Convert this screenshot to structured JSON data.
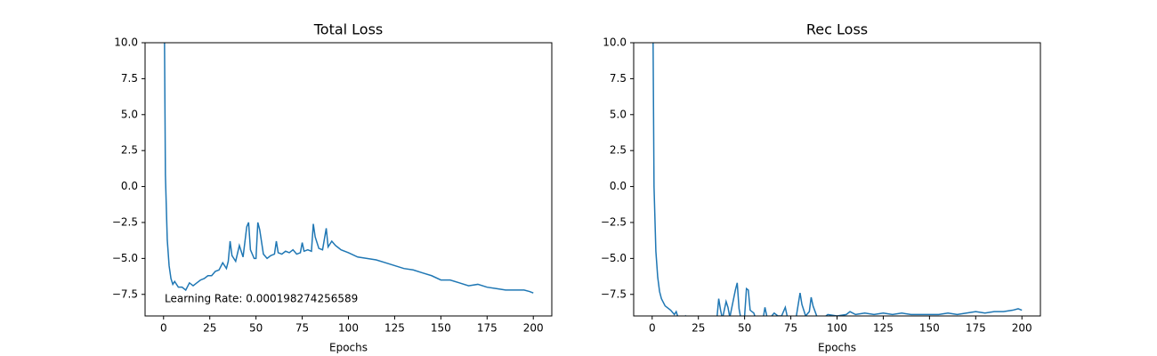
{
  "chart_data": [
    {
      "type": "line",
      "title": "Total Loss",
      "x_label": "Epochs",
      "annotation": "Learning Rate: 0.000198274256589",
      "color": "#1f77b4",
      "x": [
        0,
        1,
        2,
        3,
        4,
        5,
        6,
        8,
        10,
        12,
        14,
        16,
        18,
        20,
        22,
        24,
        26,
        28,
        30,
        32,
        34,
        35,
        36,
        37,
        39,
        41,
        43,
        45,
        46,
        47,
        49,
        50,
        51,
        52,
        54,
        56,
        58,
        60,
        61,
        62,
        64,
        66,
        68,
        70,
        72,
        74,
        75,
        76,
        78,
        80,
        81,
        82,
        84,
        86,
        88,
        89,
        91,
        93,
        96,
        100,
        105,
        110,
        115,
        120,
        125,
        130,
        135,
        140,
        145,
        150,
        155,
        160,
        165,
        170,
        175,
        180,
        185,
        190,
        195,
        198,
        200
      ],
      "values": [
        20,
        0.8,
        -3.7,
        -5.5,
        -6.4,
        -6.8,
        -6.6,
        -7.0,
        -7.0,
        -7.2,
        -6.7,
        -6.9,
        -6.7,
        -6.5,
        -6.4,
        -6.2,
        -6.2,
        -5.9,
        -5.8,
        -5.3,
        -5.7,
        -5.2,
        -3.8,
        -4.8,
        -5.2,
        -4.1,
        -4.9,
        -2.8,
        -2.5,
        -4.4,
        -5.0,
        -5.0,
        -2.5,
        -3.0,
        -4.7,
        -5.0,
        -4.8,
        -4.7,
        -3.8,
        -4.6,
        -4.7,
        -4.5,
        -4.6,
        -4.4,
        -4.7,
        -4.6,
        -3.9,
        -4.5,
        -4.4,
        -4.5,
        -2.6,
        -3.5,
        -4.3,
        -4.4,
        -2.9,
        -4.2,
        -3.8,
        -4.1,
        -4.4,
        -4.6,
        -4.9,
        -5.0,
        -5.1,
        -5.3,
        -5.5,
        -5.7,
        -5.8,
        -6.0,
        -6.2,
        -6.5,
        -6.5,
        -6.7,
        -6.9,
        -6.8,
        -7.0,
        -7.1,
        -7.2,
        -7.2,
        -7.2,
        -7.3,
        -7.4
      ],
      "xlim": [
        -10,
        210
      ],
      "xticks": [
        0,
        25,
        50,
        75,
        100,
        125,
        150,
        175,
        200
      ],
      "ylim": [
        -9,
        10
      ],
      "yticks": [
        {
          "value": -7.5,
          "label": "−7.5"
        },
        {
          "value": -5,
          "label": "−5.0"
        },
        {
          "value": -2.5,
          "label": "−2.5"
        },
        {
          "value": 0,
          "label": "0.0"
        },
        {
          "value": 2.5,
          "label": "2.5"
        },
        {
          "value": 5,
          "label": "5.0"
        },
        {
          "value": 7.5,
          "label": "7.5"
        },
        {
          "value": 10,
          "label": "10.0"
        }
      ]
    },
    {
      "type": "line",
      "title": "Rec Loss",
      "x_label": "Epochs",
      "color": "#1f77b4",
      "x": [
        0,
        1,
        2,
        3,
        4,
        5,
        7,
        10,
        12,
        13,
        14,
        16,
        18,
        20,
        30,
        35,
        36,
        37,
        38,
        40,
        41,
        42,
        45,
        46,
        47,
        48,
        50,
        51,
        52,
        53,
        55,
        56,
        60,
        61,
        62,
        64,
        66,
        68,
        70,
        72,
        73,
        76,
        78,
        80,
        81,
        83,
        85,
        86,
        87,
        89,
        92,
        95,
        100,
        105,
        107,
        110,
        115,
        120,
        125,
        130,
        135,
        140,
        145,
        150,
        155,
        160,
        165,
        170,
        175,
        180,
        185,
        190,
        195,
        198,
        200
      ],
      "values": [
        20,
        0,
        -4.5,
        -6.3,
        -7.3,
        -7.8,
        -8.3,
        -8.6,
        -8.9,
        -8.7,
        -9.1,
        -9.3,
        -9.0,
        -9.4,
        -9.4,
        -9.2,
        -7.8,
        -8.6,
        -9.2,
        -8.0,
        -8.4,
        -9.1,
        -7.2,
        -6.7,
        -8.5,
        -9.2,
        -9.0,
        -7.1,
        -7.2,
        -8.6,
        -8.8,
        -9.2,
        -9.2,
        -8.4,
        -9.0,
        -9.1,
        -8.8,
        -9.0,
        -9.0,
        -8.4,
        -9.0,
        -9.2,
        -9.0,
        -7.4,
        -8.2,
        -9.0,
        -8.7,
        -7.7,
        -8.3,
        -9.0,
        -9.2,
        -8.9,
        -9.0,
        -8.9,
        -8.7,
        -8.9,
        -8.8,
        -8.9,
        -8.8,
        -8.9,
        -8.8,
        -8.9,
        -8.9,
        -8.9,
        -8.9,
        -8.8,
        -8.9,
        -8.8,
        -8.7,
        -8.8,
        -8.7,
        -8.7,
        -8.6,
        -8.5,
        -8.6
      ],
      "xlim": [
        -10,
        210
      ],
      "xticks": [
        0,
        25,
        50,
        75,
        100,
        125,
        150,
        175,
        200
      ],
      "ylim": [
        -9,
        10
      ],
      "yticks": [
        {
          "value": -7.5,
          "label": "−7.5"
        },
        {
          "value": -5,
          "label": "−5.0"
        },
        {
          "value": -2.5,
          "label": "−2.5"
        },
        {
          "value": 0,
          "label": "0.0"
        },
        {
          "value": 2.5,
          "label": "2.5"
        },
        {
          "value": 5,
          "label": "5.0"
        },
        {
          "value": 7.5,
          "label": "7.5"
        },
        {
          "value": 10,
          "label": "10.0"
        }
      ]
    }
  ]
}
